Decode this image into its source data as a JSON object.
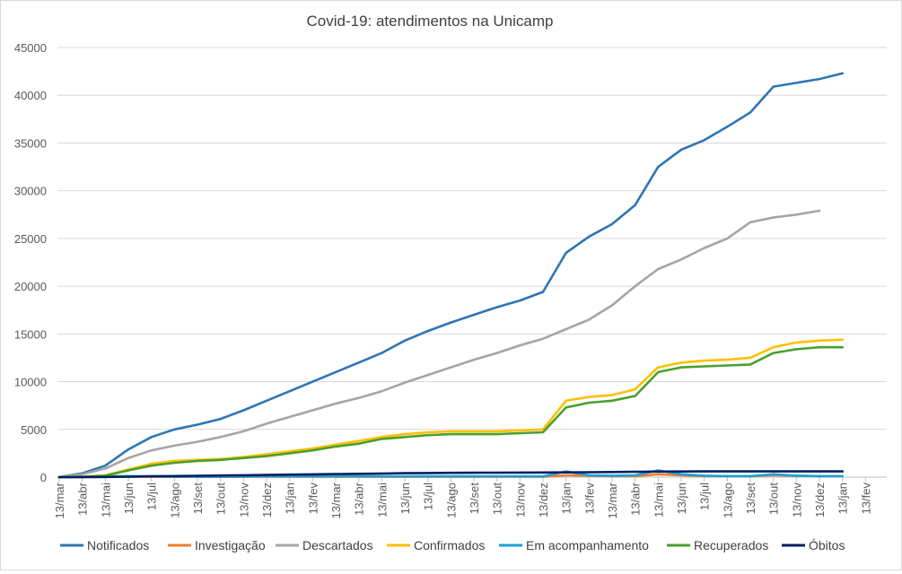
{
  "chart_data": {
    "type": "line",
    "title": "Covid-19: atendimentos  na Unicamp",
    "xlabel": "",
    "ylabel": "",
    "ylim": [
      0,
      45000
    ],
    "yticks": [
      0,
      5000,
      10000,
      15000,
      20000,
      25000,
      30000,
      35000,
      40000,
      45000
    ],
    "grid": true,
    "legend_position": "bottom",
    "x": [
      "13/mar",
      "13/abr",
      "13/mai",
      "13/jun",
      "13/jul",
      "13/ago",
      "13/set",
      "13/out",
      "13/nov",
      "13/dez",
      "13/jan",
      "13/fev",
      "13/mar",
      "13/abr",
      "13/mai",
      "13/jun",
      "13/jul",
      "13/ago",
      "13/set",
      "13/out",
      "13/nov",
      "13/dez",
      "13/jan",
      "13/fev",
      "13/mar",
      "13/abr",
      "13/mai",
      "13/jun",
      "13/jul",
      "13/ago",
      "13/set",
      "13/out",
      "13/nov",
      "13/dez",
      "13/jan",
      "13/fev"
    ],
    "series": [
      {
        "name": "Notificados",
        "color": "#2e75b6",
        "values": [
          0,
          400,
          1200,
          2900,
          4200,
          5000,
          5500,
          6100,
          7000,
          8000,
          9000,
          10000,
          11000,
          12000,
          13000,
          14300,
          15300,
          16200,
          17000,
          17800,
          18500,
          19400,
          23500,
          25200,
          26500,
          28500,
          32500,
          34300,
          35300,
          36700,
          38200,
          40900,
          41300,
          41700,
          42300,
          null
        ]
      },
      {
        "name": "Investigação",
        "color": "#ed7d31",
        "values": [
          0,
          20,
          30,
          40,
          40,
          30,
          30,
          30,
          40,
          40,
          40,
          40,
          40,
          40,
          40,
          40,
          40,
          40,
          40,
          40,
          40,
          40,
          200,
          150,
          100,
          100,
          300,
          200,
          100,
          100,
          100,
          200,
          150,
          100,
          100,
          null
        ]
      },
      {
        "name": "Descartados",
        "color": "#a5a5a5",
        "values": [
          0,
          300,
          900,
          2000,
          2800,
          3300,
          3700,
          4200,
          4800,
          5600,
          6300,
          7000,
          7700,
          8300,
          9000,
          9900,
          10700,
          11500,
          12300,
          13000,
          13800,
          14500,
          15500,
          16500,
          18000,
          20000,
          21800,
          22800,
          24000,
          25000,
          26700,
          27200,
          27500,
          27900,
          null,
          null
        ]
      },
      {
        "name": "Confirmados",
        "color": "#ffc000",
        "values": [
          0,
          50,
          200,
          800,
          1400,
          1700,
          1800,
          1900,
          2100,
          2400,
          2700,
          3000,
          3400,
          3800,
          4200,
          4500,
          4700,
          4800,
          4800,
          4800,
          4900,
          5000,
          8000,
          8400,
          8600,
          9200,
          11500,
          12000,
          12200,
          12300,
          12500,
          13600,
          14100,
          14300,
          14400,
          null
        ]
      },
      {
        "name": "Em acompanhamento",
        "color": "#1ca0d9",
        "values": [
          0,
          30,
          80,
          100,
          80,
          60,
          60,
          60,
          70,
          80,
          80,
          80,
          80,
          80,
          80,
          80,
          80,
          80,
          80,
          80,
          80,
          80,
          600,
          200,
          150,
          200,
          700,
          300,
          150,
          100,
          100,
          300,
          150,
          100,
          100,
          null
        ]
      },
      {
        "name": "Recuperados",
        "color": "#4aa02c",
        "values": [
          0,
          20,
          150,
          700,
          1200,
          1500,
          1700,
          1800,
          2000,
          2200,
          2500,
          2800,
          3200,
          3500,
          4000,
          4200,
          4400,
          4500,
          4500,
          4500,
          4600,
          4700,
          7300,
          7800,
          8000,
          8500,
          11000,
          11500,
          11600,
          11700,
          11800,
          13000,
          13400,
          13600,
          13600,
          null
        ]
      },
      {
        "name": "Óbitos",
        "color": "#002060",
        "values": [
          0,
          10,
          20,
          50,
          80,
          110,
          140,
          170,
          200,
          230,
          260,
          290,
          320,
          350,
          380,
          410,
          430,
          450,
          460,
          470,
          480,
          490,
          500,
          520,
          540,
          560,
          580,
          590,
          600,
          600,
          600,
          600,
          600,
          600,
          600,
          null
        ]
      }
    ]
  }
}
